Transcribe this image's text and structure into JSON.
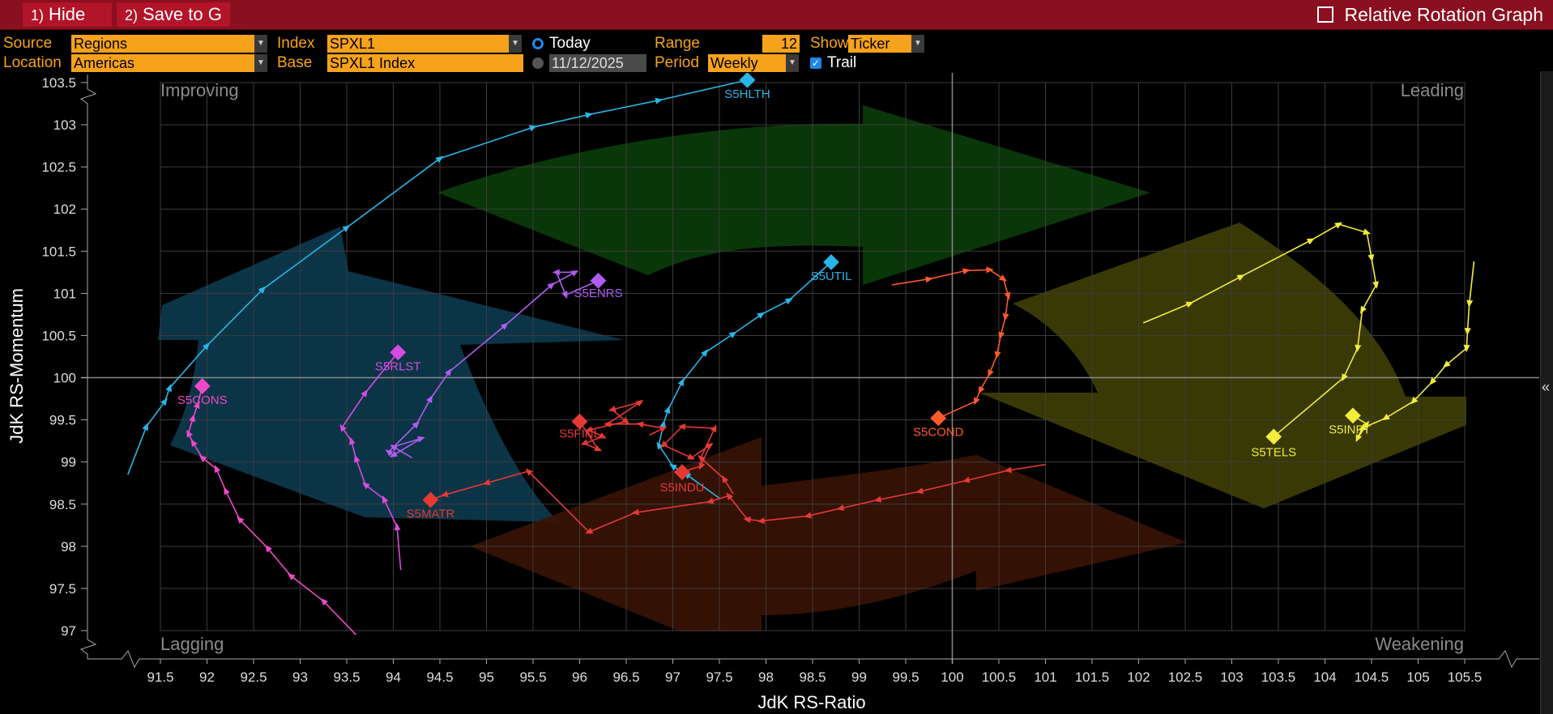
{
  "toolbar": {
    "hide_num": "1)",
    "hide_label": "Hide",
    "save_num": "2)",
    "save_label": "Save to G",
    "title": "Relative Rotation Graph"
  },
  "controls": {
    "source_label": "Source",
    "source_value": "Regions",
    "location_label": "Location",
    "location_value": "Americas",
    "index_label": "Index",
    "index_value": "SPXL1",
    "base_label": "Base",
    "base_value": "SPXL1 Index",
    "today_label": "Today",
    "date_value": "11/12/2025",
    "range_label": "Range",
    "range_value": "12",
    "period_label": "Period",
    "period_value": "Weekly",
    "show_label": "Show",
    "show_value": "Ticker",
    "trail_label": "Trail"
  },
  "colors": {
    "toolbar_bg": "#8a0f1f",
    "field_bg": "#f7a21b",
    "improving": "#0c3a4f",
    "leading": "#0a3d0a",
    "weakening": "#3f3f05",
    "lagging": "#3a1306"
  },
  "chart_data": {
    "type": "scatter",
    "xlabel": "JdK RS-Ratio",
    "ylabel": "JdK RS-Momentum",
    "xlim": [
      91.2,
      105.6
    ],
    "ylim": [
      96.95,
      103.6
    ],
    "center": [
      100,
      100
    ],
    "x_ticks": [
      91.5,
      92,
      92.5,
      93,
      93.5,
      94,
      94.5,
      95,
      95.5,
      96,
      96.5,
      97,
      97.5,
      98,
      98.5,
      99,
      99.5,
      100,
      100.5,
      101,
      101.5,
      102,
      102.5,
      103,
      103.5,
      104,
      104.5,
      105,
      105.5
    ],
    "y_ticks": [
      97,
      97.5,
      98,
      98.5,
      99,
      99.5,
      100,
      100.5,
      101,
      101.5,
      102,
      102.5,
      103,
      103.5
    ],
    "quadrants": [
      "Improving",
      "Leading",
      "Lagging",
      "Weakening"
    ],
    "series": [
      {
        "name": "S5HLTH",
        "color": "#29b6e6",
        "points": [
          [
            91.15,
            98.85
          ],
          [
            91.35,
            99.42
          ],
          [
            91.55,
            99.72
          ],
          [
            91.6,
            99.88
          ],
          [
            92.0,
            100.38
          ],
          [
            92.6,
            101.05
          ],
          [
            93.5,
            101.78
          ],
          [
            94.5,
            102.6
          ],
          [
            95.5,
            102.97
          ],
          [
            96.1,
            103.12
          ],
          [
            96.85,
            103.29
          ],
          [
            97.8,
            103.53
          ]
        ]
      },
      {
        "name": "S5UTIL",
        "color": "#29b6e6",
        "points": [
          [
            97.5,
            98.57
          ],
          [
            97.15,
            98.85
          ],
          [
            97.0,
            98.95
          ],
          [
            96.85,
            99.2
          ],
          [
            96.9,
            99.45
          ],
          [
            96.95,
            99.62
          ],
          [
            97.1,
            99.95
          ],
          [
            97.35,
            100.3
          ],
          [
            97.65,
            100.52
          ],
          [
            97.95,
            100.75
          ],
          [
            98.25,
            100.92
          ],
          [
            98.7,
            101.37
          ]
        ]
      },
      {
        "name": "S5ENRS",
        "color": "#b05cf0",
        "points": [
          [
            94.2,
            99.05
          ],
          [
            94.0,
            99.18
          ],
          [
            94.3,
            99.28
          ],
          [
            94.0,
            99.08
          ],
          [
            93.95,
            99.12
          ],
          [
            94.25,
            99.45
          ],
          [
            94.4,
            99.75
          ],
          [
            94.6,
            100.07
          ],
          [
            95.2,
            100.62
          ],
          [
            95.7,
            101.1
          ],
          [
            95.95,
            101.25
          ],
          [
            95.75,
            101.25
          ],
          [
            95.85,
            100.98
          ],
          [
            96.2,
            101.15
          ]
        ]
      },
      {
        "name": "S5RLST",
        "color": "#d64ce0",
        "points": [
          [
            94.08,
            97.72
          ],
          [
            94.04,
            98.23
          ],
          [
            93.9,
            98.56
          ],
          [
            93.7,
            98.73
          ],
          [
            93.6,
            99.04
          ],
          [
            93.55,
            99.25
          ],
          [
            93.45,
            99.41
          ],
          [
            93.7,
            99.82
          ],
          [
            94.05,
            100.3
          ]
        ]
      },
      {
        "name": "S5CONS",
        "color": "#ee49c8",
        "points": [
          [
            93.6,
            96.95
          ],
          [
            93.25,
            97.35
          ],
          [
            92.9,
            97.65
          ],
          [
            92.65,
            97.98
          ],
          [
            92.35,
            98.32
          ],
          [
            92.2,
            98.66
          ],
          [
            92.1,
            98.92
          ],
          [
            91.95,
            99.05
          ],
          [
            91.85,
            99.23
          ],
          [
            91.8,
            99.34
          ],
          [
            91.85,
            99.52
          ],
          [
            91.9,
            99.68
          ],
          [
            91.95,
            99.9
          ]
        ]
      },
      {
        "name": "S5FINL",
        "color": "#e53935",
        "points": [
          [
            96.75,
            99.32
          ],
          [
            96.9,
            99.4
          ],
          [
            96.65,
            99.45
          ],
          [
            96.3,
            99.45
          ],
          [
            96.65,
            99.71
          ],
          [
            96.35,
            99.62
          ],
          [
            96.5,
            99.48
          ],
          [
            96.1,
            99.38
          ],
          [
            96.25,
            99.3
          ],
          [
            96.05,
            99.22
          ],
          [
            96.2,
            99.15
          ],
          [
            96.0,
            99.48
          ]
        ]
      },
      {
        "name": "S5INDU",
        "color": "#e53935",
        "points": [
          [
            97.65,
            98.62
          ],
          [
            97.55,
            98.8
          ],
          [
            97.3,
            99.05
          ],
          [
            97.45,
            99.4
          ],
          [
            97.1,
            99.42
          ],
          [
            96.9,
            99.2
          ],
          [
            97.2,
            99.05
          ],
          [
            97.4,
            99.2
          ],
          [
            97.3,
            98.95
          ],
          [
            97.1,
            98.88
          ]
        ]
      },
      {
        "name": "S5MATR",
        "color": "#e53935",
        "points": [
          [
            101.0,
            98.97
          ],
          [
            100.6,
            98.9
          ],
          [
            100.15,
            98.78
          ],
          [
            99.65,
            98.65
          ],
          [
            99.2,
            98.55
          ],
          [
            98.8,
            98.45
          ],
          [
            98.45,
            98.36
          ],
          [
            97.95,
            98.3
          ],
          [
            97.8,
            98.32
          ],
          [
            97.6,
            98.6
          ],
          [
            97.4,
            98.53
          ],
          [
            96.6,
            98.4
          ],
          [
            96.1,
            98.17
          ],
          [
            95.45,
            98.89
          ],
          [
            95.0,
            98.75
          ],
          [
            94.55,
            98.61
          ],
          [
            94.4,
            98.55
          ]
        ]
      },
      {
        "name": "S5COND",
        "color": "#ff5a2a",
        "points": [
          [
            99.35,
            101.1
          ],
          [
            99.75,
            101.17
          ],
          [
            100.15,
            101.27
          ],
          [
            100.4,
            101.28
          ],
          [
            100.55,
            101.17
          ],
          [
            100.6,
            100.97
          ],
          [
            100.57,
            100.72
          ],
          [
            100.52,
            100.5
          ],
          [
            100.48,
            100.27
          ],
          [
            100.4,
            100.05
          ],
          [
            100.3,
            99.85
          ],
          [
            100.25,
            99.72
          ],
          [
            99.85,
            99.52
          ]
        ]
      },
      {
        "name": "S5TELS",
        "color": "#f2ec3a",
        "points": [
          [
            102.05,
            100.65
          ],
          [
            102.55,
            100.88
          ],
          [
            103.1,
            101.2
          ],
          [
            103.85,
            101.63
          ],
          [
            104.15,
            101.82
          ],
          [
            104.45,
            101.72
          ],
          [
            104.5,
            101.42
          ],
          [
            104.55,
            101.1
          ],
          [
            104.4,
            100.8
          ],
          [
            104.35,
            100.35
          ],
          [
            104.2,
            100.0
          ],
          [
            103.45,
            99.3
          ]
        ]
      },
      {
        "name": "S5INFT",
        "color": "#f2ec3a",
        "points": [
          [
            105.6,
            101.38
          ],
          [
            105.55,
            100.88
          ],
          [
            105.53,
            100.55
          ],
          [
            105.52,
            100.35
          ],
          [
            105.3,
            100.15
          ],
          [
            105.15,
            99.95
          ],
          [
            104.95,
            99.72
          ],
          [
            104.65,
            99.52
          ],
          [
            104.4,
            99.4
          ],
          [
            104.35,
            99.28
          ],
          [
            104.45,
            99.45
          ],
          [
            104.3,
            99.55
          ]
        ]
      }
    ]
  }
}
